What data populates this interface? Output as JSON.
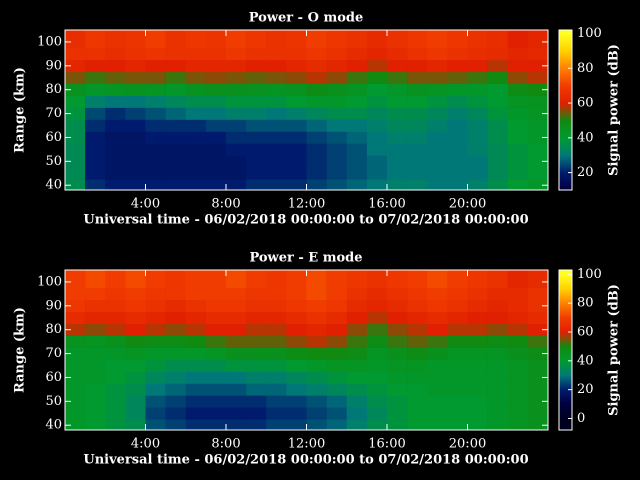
{
  "chart_data": [
    {
      "type": "heatmap",
      "title": "Power - O mode",
      "x_label": "Universal time - 06/02/2018 00:00:00 to 07/02/2018 00:00:00",
      "y_label": "Range (km)",
      "x": [
        0.5,
        1.5,
        2.5,
        3.5,
        4.5,
        5.5,
        6.5,
        7.5,
        8.5,
        9.5,
        10.5,
        11.5,
        12.5,
        13.5,
        14.5,
        15.5,
        16.5,
        17.5,
        18.5,
        19.5,
        20.5,
        21.5,
        22.5,
        23.5
      ],
      "y": [
        40,
        45,
        50,
        55,
        60,
        65,
        70,
        75,
        80,
        85,
        90,
        95,
        100
      ],
      "values": [
        [
          36,
          22,
          20,
          20,
          20,
          20,
          20,
          20,
          20,
          22,
          22,
          22,
          24,
          26,
          28,
          30,
          32,
          32,
          30,
          30,
          32,
          36,
          40,
          42
        ],
        [
          35,
          20,
          18,
          18,
          18,
          18,
          18,
          18,
          18,
          20,
          20,
          20,
          22,
          24,
          26,
          28,
          30,
          30,
          30,
          30,
          30,
          35,
          38,
          40
        ],
        [
          35,
          20,
          18,
          18,
          18,
          18,
          18,
          18,
          18,
          20,
          20,
          20,
          22,
          24,
          26,
          28,
          30,
          30,
          30,
          30,
          30,
          35,
          38,
          40
        ],
        [
          35,
          20,
          18,
          18,
          18,
          18,
          18,
          18,
          20,
          20,
          20,
          20,
          22,
          24,
          26,
          30,
          30,
          30,
          30,
          30,
          32,
          35,
          38,
          40
        ],
        [
          36,
          20,
          18,
          18,
          20,
          20,
          20,
          20,
          22,
          22,
          22,
          22,
          24,
          26,
          28,
          30,
          32,
          32,
          30,
          30,
          32,
          36,
          40,
          42
        ],
        [
          36,
          22,
          20,
          20,
          22,
          22,
          22,
          24,
          24,
          26,
          26,
          26,
          28,
          30,
          30,
          32,
          34,
          34,
          32,
          30,
          32,
          36,
          40,
          42
        ],
        [
          38,
          25,
          22,
          24,
          26,
          28,
          30,
          30,
          32,
          32,
          30,
          32,
          34,
          36,
          36,
          34,
          36,
          36,
          34,
          32,
          34,
          38,
          42,
          44
        ],
        [
          40,
          32,
          30,
          30,
          32,
          34,
          36,
          36,
          38,
          38,
          38,
          40,
          42,
          42,
          40,
          38,
          40,
          40,
          38,
          36,
          38,
          40,
          44,
          45
        ],
        [
          45,
          42,
          44,
          45,
          44,
          42,
          45,
          46,
          46,
          45,
          44,
          45,
          48,
          46,
          44,
          40,
          42,
          45,
          44,
          42,
          42,
          40,
          48,
          50
        ],
        [
          55,
          52,
          54,
          55,
          55,
          52,
          55,
          56,
          55,
          54,
          55,
          56,
          58,
          56,
          52,
          50,
          52,
          55,
          55,
          54,
          52,
          50,
          56,
          58
        ],
        [
          62,
          60,
          60,
          62,
          60,
          60,
          62,
          62,
          62,
          60,
          60,
          62,
          64,
          62,
          60,
          58,
          60,
          60,
          62,
          60,
          60,
          58,
          60,
          60
        ],
        [
          66,
          66,
          65,
          66,
          67,
          66,
          66,
          66,
          68,
          66,
          66,
          66,
          68,
          66,
          64,
          62,
          64,
          66,
          68,
          66,
          65,
          64,
          62,
          63
        ],
        [
          65,
          68,
          66,
          67,
          70,
          66,
          68,
          67,
          70,
          68,
          66,
          67,
          70,
          68,
          66,
          64,
          66,
          68,
          70,
          68,
          66,
          65,
          60,
          62
        ]
      ],
      "xlim": [
        0,
        24
      ],
      "ylim": [
        38,
        105
      ],
      "xticks": [
        {
          "value": 4,
          "label": "4:00"
        },
        {
          "value": 8,
          "label": "8:00"
        },
        {
          "value": 12,
          "label": "12:00"
        },
        {
          "value": 16,
          "label": "16:00"
        },
        {
          "value": 20,
          "label": "20:00"
        }
      ],
      "yticks": [
        40,
        50,
        60,
        70,
        80,
        90,
        100
      ],
      "colorbar": {
        "label": "Signal power (dB)",
        "lim": [
          10,
          102
        ],
        "ticks": [
          20,
          40,
          60,
          80,
          100
        ]
      },
      "colormap": [
        "#000020",
        "#00003c",
        "#001a6e",
        "#007878",
        "#009a30",
        "#108a10",
        "#e02000",
        "#f03c00",
        "#ff8000",
        "#ffd000",
        "#ffff20"
      ]
    },
    {
      "type": "heatmap",
      "title": "Power - E mode",
      "x_label": "Universal time - 06/02/2018 00:00:00 to 07/02/2018 00:00:00",
      "y_label": "Range (km)",
      "x": [
        0.5,
        1.5,
        2.5,
        3.5,
        4.5,
        5.5,
        6.5,
        7.5,
        8.5,
        9.5,
        10.5,
        11.5,
        12.5,
        13.5,
        14.5,
        15.5,
        16.5,
        17.5,
        18.5,
        19.5,
        20.5,
        21.5,
        22.5,
        23.5
      ],
      "y": [
        40,
        45,
        50,
        55,
        60,
        65,
        70,
        75,
        80,
        85,
        90,
        95,
        100
      ],
      "values": [
        [
          42,
          40,
          38,
          36,
          26,
          24,
          22,
          22,
          22,
          22,
          24,
          24,
          26,
          28,
          32,
          36,
          38,
          40,
          40,
          40,
          40,
          42,
          44,
          46
        ],
        [
          42,
          40,
          38,
          34,
          24,
          22,
          20,
          20,
          20,
          20,
          22,
          22,
          24,
          26,
          30,
          34,
          38,
          40,
          40,
          40,
          40,
          42,
          44,
          46
        ],
        [
          42,
          40,
          38,
          34,
          26,
          24,
          22,
          22,
          22,
          22,
          24,
          24,
          26,
          28,
          32,
          36,
          38,
          40,
          40,
          40,
          40,
          42,
          44,
          46
        ],
        [
          42,
          40,
          38,
          36,
          30,
          28,
          26,
          26,
          26,
          28,
          28,
          30,
          32,
          34,
          36,
          38,
          40,
          40,
          42,
          42,
          42,
          42,
          44,
          46
        ],
        [
          42,
          42,
          40,
          38,
          34,
          32,
          30,
          30,
          30,
          32,
          32,
          34,
          36,
          38,
          40,
          40,
          42,
          42,
          42,
          42,
          42,
          42,
          44,
          46
        ],
        [
          42,
          42,
          40,
          40,
          38,
          36,
          36,
          36,
          38,
          38,
          38,
          40,
          42,
          44,
          44,
          42,
          44,
          44,
          42,
          42,
          42,
          42,
          44,
          46
        ],
        [
          42,
          42,
          42,
          44,
          42,
          42,
          42,
          44,
          46,
          46,
          46,
          48,
          50,
          50,
          48,
          44,
          46,
          48,
          46,
          44,
          44,
          44,
          46,
          48
        ],
        [
          45,
          44,
          46,
          50,
          48,
          48,
          50,
          52,
          54,
          54,
          54,
          56,
          58,
          56,
          52,
          48,
          52,
          54,
          52,
          50,
          50,
          48,
          50,
          52
        ],
        [
          58,
          56,
          58,
          60,
          58,
          56,
          58,
          60,
          60,
          58,
          58,
          60,
          62,
          60,
          56,
          52,
          56,
          58,
          60,
          58,
          58,
          56,
          58,
          60
        ],
        [
          64,
          62,
          62,
          64,
          62,
          60,
          62,
          64,
          64,
          62,
          62,
          64,
          66,
          64,
          60,
          58,
          60,
          62,
          64,
          62,
          60,
          60,
          62,
          64
        ],
        [
          68,
          66,
          66,
          68,
          66,
          64,
          66,
          68,
          68,
          66,
          66,
          68,
          70,
          68,
          64,
          62,
          64,
          66,
          68,
          66,
          64,
          62,
          64,
          66
        ],
        [
          70,
          70,
          68,
          70,
          68,
          68,
          70,
          70,
          70,
          68,
          68,
          70,
          72,
          70,
          66,
          64,
          66,
          68,
          70,
          68,
          66,
          64,
          64,
          66
        ],
        [
          70,
          72,
          70,
          72,
          70,
          68,
          70,
          70,
          72,
          70,
          68,
          70,
          72,
          70,
          68,
          66,
          68,
          70,
          72,
          70,
          68,
          66,
          62,
          64
        ]
      ],
      "xlim": [
        0,
        24
      ],
      "ylim": [
        38,
        105
      ],
      "xticks": [
        {
          "value": 4,
          "label": "4:00"
        },
        {
          "value": 8,
          "label": "8:00"
        },
        {
          "value": 12,
          "label": "12:00"
        },
        {
          "value": 16,
          "label": "16:00"
        },
        {
          "value": 20,
          "label": "20:00"
        }
      ],
      "yticks": [
        40,
        50,
        60,
        70,
        80,
        90,
        100
      ],
      "colorbar": {
        "label": "Signal power (dB)",
        "lim": [
          -8,
          103
        ],
        "ticks": [
          0,
          20,
          40,
          60,
          80,
          100
        ]
      },
      "colormap": [
        "#000020",
        "#00003c",
        "#001a6e",
        "#007878",
        "#009a30",
        "#108a10",
        "#e02000",
        "#f03c00",
        "#ff8000",
        "#ffd000",
        "#ffff20"
      ]
    }
  ]
}
